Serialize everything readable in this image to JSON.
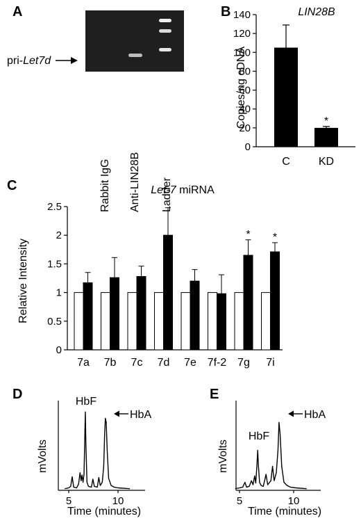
{
  "panels": {
    "A": {
      "letter": "A",
      "arrow_label_prefix": "pri-",
      "arrow_label_italic": "Let7d",
      "lanes": [
        "Rabbit IgG",
        "Anti-LIN28B",
        "Ladder"
      ]
    },
    "B": {
      "letter": "B",
      "title": "LIN28B",
      "ylabel": "Copies/ng cDNA",
      "star": "*"
    },
    "C": {
      "letter": "C",
      "title_italic": "Let-7",
      "title_rest": " miRNA",
      "ylabel": "Relative Intensity",
      "star": "*"
    },
    "D": {
      "letter": "D",
      "ylabel": "mVolts",
      "xlabel": "Time (minutes)",
      "peak1": "HbF",
      "peak2": "HbA"
    },
    "E": {
      "letter": "E",
      "ylabel": "mVolts",
      "xlabel": "Time (minutes)",
      "peak1": "HbF",
      "peak2": "HbA"
    }
  },
  "chart_data": [
    {
      "panel": "A",
      "type": "table",
      "lanes": [
        "Rabbit IgG",
        "Anti-LIN28B",
        "Ladder"
      ],
      "band_label": "pri-Let7d",
      "band_present": [
        false,
        true,
        true
      ]
    },
    {
      "panel": "B",
      "type": "bar",
      "title": "LIN28B",
      "categories": [
        "C",
        "KD"
      ],
      "values": [
        105,
        20
      ],
      "errors": [
        24,
        1.5
      ],
      "significant": [
        false,
        true
      ],
      "ylabel": "Copies/ng cDNA",
      "ylim": [
        0,
        140
      ],
      "yticks": [
        0,
        20,
        40,
        60,
        80,
        100,
        120,
        140
      ]
    },
    {
      "panel": "C",
      "type": "bar",
      "title": "Let-7 miRNA",
      "categories": [
        "7a",
        "7b",
        "7c",
        "7d",
        "7e",
        "7f-2",
        "7g",
        "7i"
      ],
      "series": [
        {
          "color": "#ffffff",
          "values": [
            1,
            1,
            1,
            1,
            1,
            1,
            1,
            1
          ],
          "errors": [
            0,
            0,
            0,
            0,
            0,
            0,
            0,
            0
          ]
        },
        {
          "color": "#000000",
          "values": [
            1.17,
            1.26,
            1.28,
            2.0,
            1.2,
            0.98,
            1.65,
            1.71
          ],
          "errors": [
            0.18,
            0.35,
            0.18,
            0.48,
            0.2,
            0.33,
            0.27,
            0.16
          ]
        }
      ],
      "significant": [
        false,
        false,
        false,
        false,
        false,
        false,
        true,
        true
      ],
      "ylabel": "Relative Intensity",
      "ylim": [
        0,
        2.5
      ],
      "yticks": [
        "0",
        "0.5",
        "1",
        "1.5",
        "2",
        "2.5"
      ]
    },
    {
      "panel": "D",
      "type": "line",
      "xlabel": "Time (minutes)",
      "ylabel": "mVolts",
      "xticks": [
        5,
        10
      ],
      "xlim": [
        4.5,
        11.8
      ],
      "annotations": [
        "HbF",
        "HbA"
      ],
      "trace": [
        [
          4.6,
          0.02
        ],
        [
          5.0,
          0.03
        ],
        [
          5.2,
          0.05
        ],
        [
          5.35,
          0.17
        ],
        [
          5.5,
          0.04
        ],
        [
          5.8,
          0.03
        ],
        [
          6.0,
          0.08
        ],
        [
          6.15,
          0.22
        ],
        [
          6.25,
          0.12
        ],
        [
          6.35,
          0.19
        ],
        [
          6.45,
          0.1
        ],
        [
          6.55,
          0.2
        ],
        [
          6.62,
          0.6
        ],
        [
          6.68,
          0.98
        ],
        [
          6.75,
          0.55
        ],
        [
          6.85,
          0.1
        ],
        [
          7.0,
          0.05
        ],
        [
          7.3,
          0.04
        ],
        [
          7.45,
          0.14
        ],
        [
          7.6,
          0.05
        ],
        [
          7.9,
          0.04
        ],
        [
          8.05,
          0.16
        ],
        [
          8.2,
          0.06
        ],
        [
          8.4,
          0.1
        ],
        [
          8.55,
          0.3
        ],
        [
          8.65,
          0.72
        ],
        [
          8.72,
          0.9
        ],
        [
          8.8,
          0.85
        ],
        [
          8.9,
          0.5
        ],
        [
          9.05,
          0.15
        ],
        [
          9.3,
          0.06
        ],
        [
          9.6,
          0.04
        ],
        [
          10.0,
          0.03
        ],
        [
          11.2,
          0.02
        ]
      ]
    },
    {
      "panel": "E",
      "type": "line",
      "xlabel": "Time (minutes)",
      "ylabel": "mVolts",
      "xticks": [
        5,
        10
      ],
      "xlim": [
        4.5,
        11.8
      ],
      "annotations": [
        "HbF",
        "HbA"
      ],
      "trace": [
        [
          4.6,
          0.02
        ],
        [
          5.0,
          0.03
        ],
        [
          5.3,
          0.04
        ],
        [
          5.5,
          0.1
        ],
        [
          5.65,
          0.04
        ],
        [
          5.9,
          0.05
        ],
        [
          6.1,
          0.12
        ],
        [
          6.25,
          0.07
        ],
        [
          6.4,
          0.18
        ],
        [
          6.5,
          0.09
        ],
        [
          6.6,
          0.3
        ],
        [
          6.68,
          0.5
        ],
        [
          6.75,
          0.3
        ],
        [
          6.85,
          0.1
        ],
        [
          7.0,
          0.06
        ],
        [
          7.2,
          0.05
        ],
        [
          7.45,
          0.2
        ],
        [
          7.6,
          0.07
        ],
        [
          7.9,
          0.12
        ],
        [
          8.05,
          0.3
        ],
        [
          8.2,
          0.12
        ],
        [
          8.4,
          0.22
        ],
        [
          8.55,
          0.5
        ],
        [
          8.65,
          0.85
        ],
        [
          8.75,
          0.7
        ],
        [
          8.9,
          0.3
        ],
        [
          9.1,
          0.1
        ],
        [
          9.4,
          0.06
        ],
        [
          9.7,
          0.04
        ],
        [
          10.2,
          0.03
        ],
        [
          11.2,
          0.02
        ]
      ]
    }
  ]
}
